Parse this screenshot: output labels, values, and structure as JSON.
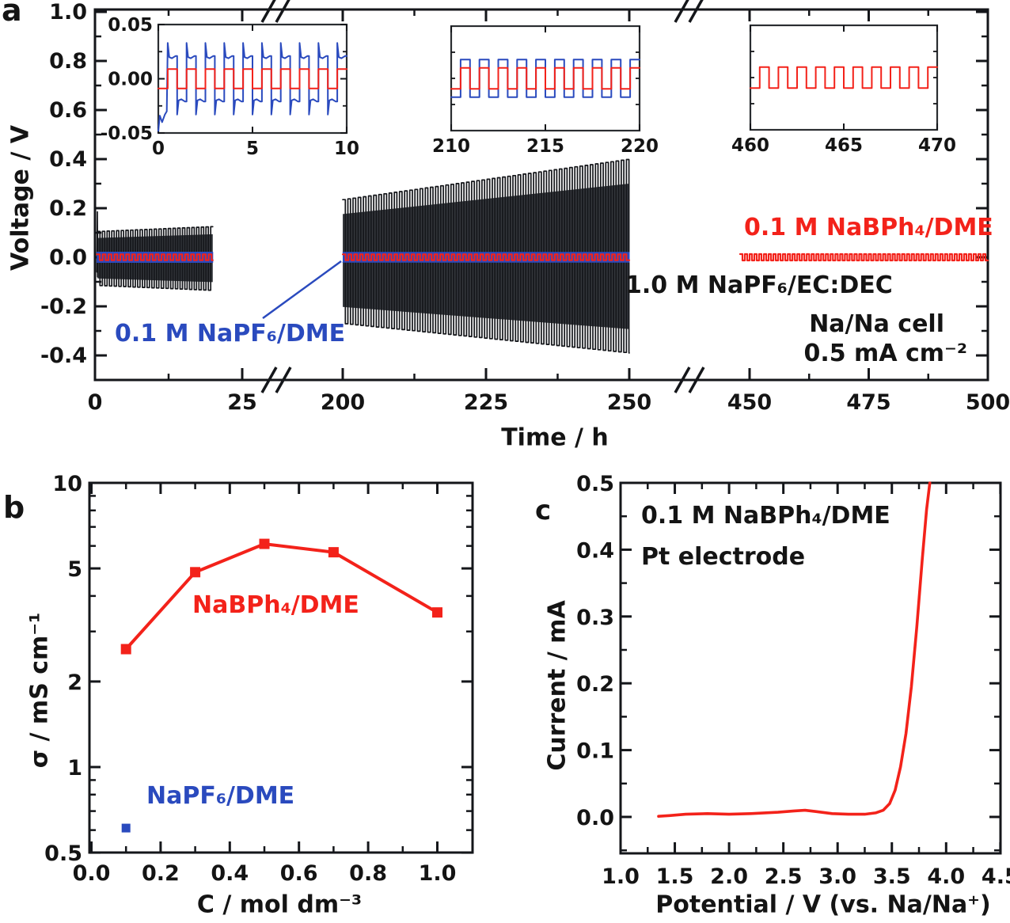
{
  "colors": {
    "red": "#f3221a",
    "blue": "#2a4abe",
    "black": "#141414",
    "trace_black": "#14161a",
    "trace_core": "#34373c"
  },
  "panel_letters": {
    "a": "a",
    "b": "b",
    "c": "c"
  },
  "axis_labels": {
    "a_x": "Time / h",
    "a_y": "Voltage / V",
    "b_x": "C / mol dm⁻³",
    "b_y": "σ / mS cm⁻¹",
    "c_x": "Potential / V (vs. Na/Na⁺)",
    "c_y": "Current / mA"
  },
  "annotations": {
    "a_blue": "0.1 M NaPF₆/DME",
    "a_red": "0.1 M NaBPh₄/DME",
    "a_black": "1.0 M NaPF₆/EC:DEC",
    "a_cell": "Na/Na cell",
    "a_current": "0.5 mA cm⁻²",
    "b_red": "NaBPh₄/DME",
    "b_blue": "NaPF₆/DME",
    "c_line1": "0.1 M NaBPh₄/DME",
    "c_line2": "Pt electrode"
  },
  "chart_data": [
    {
      "id": "panel-a",
      "type": "line",
      "title": "",
      "xlabel": "Time / h",
      "ylabel": "Voltage / V",
      "ylim": [
        -0.52,
        1.01
      ],
      "yticks": [
        {
          "v": 1.0,
          "label": "1.0"
        },
        {
          "v": 0.8,
          "label": "0.8"
        },
        {
          "v": 0.6,
          "label": "0.6"
        },
        {
          "v": 0.4,
          "label": "0.4"
        },
        {
          "v": 0.2,
          "label": "0.2"
        },
        {
          "v": 0.0,
          "label": "0.0"
        },
        {
          "v": -0.2,
          "label": "-0.2"
        },
        {
          "v": -0.4,
          "label": "-0.4"
        }
      ],
      "yminor": [
        0.9,
        0.7,
        0.5,
        0.3,
        0.1,
        -0.1,
        -0.3,
        -0.5
      ],
      "x_segments": [
        {
          "xlim": [
            0,
            30
          ],
          "ticks": [
            {
              "v": 0,
              "label": "0"
            },
            {
              "v": 25,
              "label": "25"
            }
          ],
          "minor": [
            12.5
          ]
        },
        {
          "xlim": [
            200,
            255
          ],
          "ticks": [
            {
              "v": 200,
              "label": "200"
            },
            {
              "v": 225,
              "label": "225"
            },
            {
              "v": 250,
              "label": "250"
            }
          ],
          "minor": [
            212.5,
            237.5
          ]
        },
        {
          "xlim": [
            448,
            500
          ],
          "ticks": [
            {
              "v": 450,
              "label": "450"
            },
            {
              "v": 475,
              "label": "475"
            },
            {
              "v": 500,
              "label": "500"
            }
          ],
          "minor": [
            462.5,
            487.5
          ]
        }
      ],
      "axis_breaks_h": [
        [
          30,
          200
        ],
        [
          255,
          448
        ]
      ],
      "series": [
        {
          "name": "1.0 M NaPF₆/EC:DEC",
          "color_key": "black",
          "waveform": "square_comb",
          "segments": [
            {
              "t": [
                0.45,
                20
              ],
              "period_h": 0.8,
              "amp_top": [
                0.105,
                0.125
              ],
              "amp_bottom": [
                0.115,
                0.135
              ],
              "lead_spike": {
                "t": 0.4,
                "v": 0.185
              }
            },
            {
              "t": [
                200,
                250
              ],
              "period_h": 0.9,
              "amp_top": [
                0.235,
                0.4
              ],
              "amp_bottom": [
                0.27,
                0.39
              ]
            }
          ]
        },
        {
          "name": "0.1 M NaPF₆/DME",
          "color_key": "blue",
          "waveform": "band",
          "segments": [
            {
              "t": [
                0.3,
                20
              ],
              "amp": 0.021
            },
            {
              "t": [
                200,
                250
              ],
              "amp": 0.02
            }
          ]
        },
        {
          "name": "0.1 M NaBPh₄/DME",
          "color_key": "red",
          "waveform": "zigzag",
          "period_h": 1,
          "segments": [
            {
              "t": [
                0.3,
                20
              ],
              "amp": 0.012
            },
            {
              "t": [
                200,
                250
              ],
              "amp": 0.012
            },
            {
              "t": [
                448,
                500
              ],
              "amp": 0.013
            }
          ]
        }
      ],
      "cell_note": [
        "Na/Na cell",
        "0.5 mA cm⁻²"
      ]
    },
    {
      "id": "a-inset-1",
      "type": "line",
      "xlim": [
        0,
        10
      ],
      "ylim": [
        -0.05,
        0.05
      ],
      "xticks": [
        {
          "v": 0,
          "label": "0"
        },
        {
          "v": 5,
          "label": "5"
        },
        {
          "v": 10,
          "label": "10"
        }
      ],
      "yticks": [
        {
          "v": 0.05,
          "label": "0.05"
        },
        {
          "v": 0.0,
          "label": "0.00"
        },
        {
          "v": -0.05,
          "label": "-0.05"
        }
      ],
      "yminor": [
        0.025,
        -0.025
      ],
      "series": [
        {
          "name": "0.1 M NaPF₆/DME",
          "color_key": "blue",
          "waveform": "hooked_square",
          "period_h": 1,
          "amp": 0.021,
          "spike": 0.033,
          "start_transient": true
        },
        {
          "name": "0.1 M NaBPh₄/DME",
          "color_key": "red",
          "waveform": "square",
          "period_h": 1,
          "amp": 0.009
        }
      ]
    },
    {
      "id": "a-inset-2",
      "type": "line",
      "xlim": [
        210,
        220
      ],
      "ylim": [
        -0.05,
        0.05
      ],
      "xticks": [
        {
          "v": 210,
          "label": "210"
        },
        {
          "v": 215,
          "label": "215"
        },
        {
          "v": 220,
          "label": "220"
        }
      ],
      "yticks": [],
      "yminor": [
        0.025,
        0.0,
        -0.025
      ],
      "series": [
        {
          "name": "0.1 M NaPF₆/DME",
          "color_key": "blue",
          "waveform": "square",
          "period_h": 1,
          "amp": 0.018
        },
        {
          "name": "0.1 M NaBPh₄/DME",
          "color_key": "red",
          "waveform": "square",
          "period_h": 1,
          "amp": 0.01
        }
      ]
    },
    {
      "id": "a-inset-3",
      "type": "line",
      "xlim": [
        460,
        470
      ],
      "ylim": [
        -0.05,
        0.05
      ],
      "xticks": [
        {
          "v": 460,
          "label": "460"
        },
        {
          "v": 465,
          "label": "465"
        },
        {
          "v": 470,
          "label": "470"
        }
      ],
      "yticks": [],
      "yminor": [
        0.025,
        0.0,
        -0.025
      ],
      "series": [
        {
          "name": "0.1 M NaBPh₄/DME",
          "color_key": "red",
          "waveform": "square",
          "period_h": 1,
          "amp": 0.01
        }
      ]
    },
    {
      "id": "panel-b",
      "type": "line",
      "xlabel": "C / mol dm⁻³",
      "ylabel": "σ / mS cm⁻¹",
      "xlim": [
        0,
        1.1
      ],
      "ylog_lim": [
        0.5,
        10
      ],
      "xticks": [
        {
          "v": 0.0,
          "label": "0.0"
        },
        {
          "v": 0.2,
          "label": "0.2"
        },
        {
          "v": 0.4,
          "label": "0.4"
        },
        {
          "v": 0.6,
          "label": "0.6"
        },
        {
          "v": 0.8,
          "label": "0.8"
        },
        {
          "v": 1.0,
          "label": "1.0"
        }
      ],
      "xminor": [
        0.1,
        0.3,
        0.5,
        0.7,
        0.9
      ],
      "yticks": [
        {
          "v": 10,
          "label": "10"
        },
        {
          "v": 5,
          "label": "5"
        },
        {
          "v": 2,
          "label": "2"
        },
        {
          "v": 1,
          "label": "1"
        },
        {
          "v": 0.5,
          "label": "0.5"
        }
      ],
      "yminor": [
        9,
        8,
        7,
        6,
        4,
        3,
        0.9,
        0.8,
        0.7,
        0.6
      ],
      "series": [
        {
          "name": "NaBPh₄/DME",
          "color_key": "red",
          "marker": "square",
          "line": true,
          "x": [
            0.1,
            0.3,
            0.5,
            0.7,
            1.0
          ],
          "y": [
            2.6,
            4.85,
            6.1,
            5.7,
            3.5
          ]
        },
        {
          "name": "NaPF₆/DME",
          "color_key": "blue",
          "marker": "square",
          "line": false,
          "x": [
            0.1
          ],
          "y": [
            0.61
          ]
        }
      ]
    },
    {
      "id": "panel-c",
      "type": "line",
      "xlabel": "Potential / V (vs. Na/Na⁺)",
      "ylabel": "Current / mA",
      "xlim": [
        1.0,
        4.5
      ],
      "ylim": [
        -0.055,
        0.5
      ],
      "xticks": [
        {
          "v": 1.0,
          "label": "1.0"
        },
        {
          "v": 1.5,
          "label": "1.5"
        },
        {
          "v": 2.0,
          "label": "2.0"
        },
        {
          "v": 2.5,
          "label": "2.5"
        },
        {
          "v": 3.0,
          "label": "3.0"
        },
        {
          "v": 3.5,
          "label": "3.5"
        },
        {
          "v": 4.0,
          "label": "4.0"
        },
        {
          "v": 4.5,
          "label": "4.5"
        }
      ],
      "xminor": [
        1.25,
        1.75,
        2.25,
        2.75,
        3.25,
        3.75,
        4.25
      ],
      "yticks": [
        {
          "v": 0.5,
          "label": "0.5"
        },
        {
          "v": 0.4,
          "label": "0.4"
        },
        {
          "v": 0.3,
          "label": "0.3"
        },
        {
          "v": 0.2,
          "label": "0.2"
        },
        {
          "v": 0.1,
          "label": "0.1"
        },
        {
          "v": 0.0,
          "label": "0.0"
        }
      ],
      "yminor": [
        0.45,
        0.35,
        0.25,
        0.15,
        0.05,
        -0.05
      ],
      "series": [
        {
          "name": "0.1 M NaBPh₄/DME on Pt",
          "color_key": "red",
          "x": [
            1.35,
            1.45,
            1.6,
            1.8,
            2.0,
            2.2,
            2.45,
            2.6,
            2.7,
            2.8,
            2.95,
            3.1,
            3.25,
            3.35,
            3.42,
            3.48,
            3.53,
            3.58,
            3.63,
            3.68,
            3.73,
            3.78,
            3.82,
            3.85
          ],
          "y": [
            0.001,
            0.002,
            0.004,
            0.005,
            0.004,
            0.005,
            0.007,
            0.009,
            0.01,
            0.008,
            0.005,
            0.004,
            0.004,
            0.006,
            0.01,
            0.02,
            0.04,
            0.075,
            0.125,
            0.195,
            0.285,
            0.385,
            0.46,
            0.5
          ]
        }
      ]
    }
  ]
}
